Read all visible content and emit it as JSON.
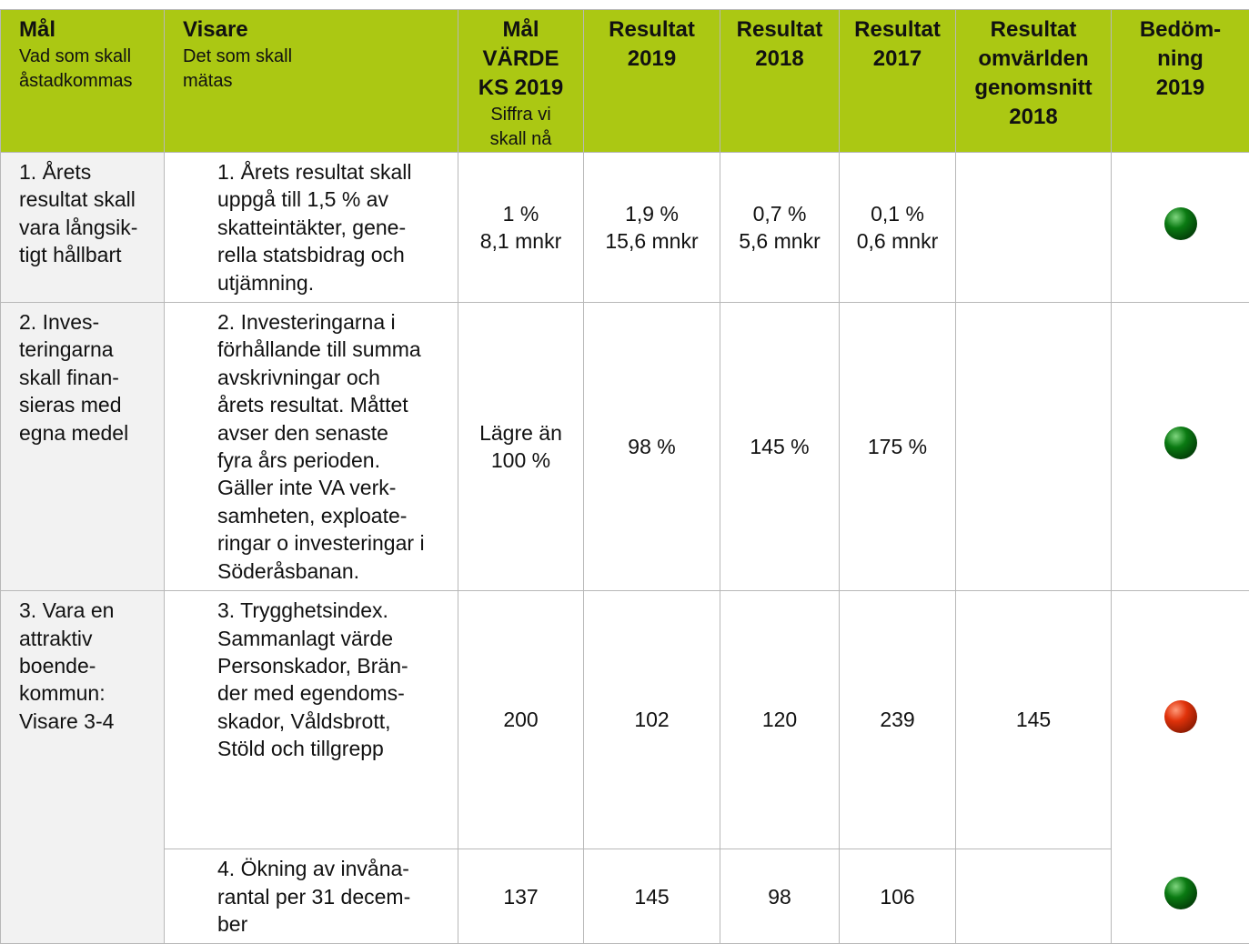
{
  "table": {
    "columns": [
      {
        "title": "Mål",
        "sub": "Vad som skall\nåstadkommas"
      },
      {
        "title": "Visare",
        "sub": "Det som skall\nmätas"
      },
      {
        "title": "Mål\nVÄRDE\nKS 2019",
        "sub": "Siffra vi\nskall nå"
      },
      {
        "title": "Resultat\n2019"
      },
      {
        "title": "Resultat\n2018"
      },
      {
        "title": "Resultat\n2017"
      },
      {
        "title": "Resultat\nomvärlden\ngenomsnitt\n2018"
      },
      {
        "title": "Bedöm-\nning\n2019"
      }
    ],
    "rows": [
      {
        "goal": "1. Årets\nresultat skall\nvara långsik-\ntigt hållbart",
        "indicators": [
          {
            "text": "1. Årets resultat skall\nuppgå till 1,5 % av\nskatteintäkter, gene-\nrella statsbidrag och\nutjämning.",
            "target": "1 %\n8,1 mnkr",
            "r2019": "1,9 %\n15,6 mnkr",
            "r2018": "0,7 %\n5,6 mnkr",
            "r2017": "0,1 %\n0,6 mnkr",
            "benchmark": null,
            "assessment": "green"
          }
        ]
      },
      {
        "goal": "2. Inves-\nteringarna\nskall finan-\nsieras med\negna medel",
        "indicators": [
          {
            "text": "2. Investeringarna i\nförhållande till summa\navskrivningar och\nårets resultat. Måttet\navser den senaste\nfyra års perioden.\nGäller inte VA verk-\nsamheten, exploate-\nringar o investeringar i\nSöderåsbanan.",
            "target": "Lägre än\n100 %",
            "r2019": "98 %",
            "r2018": "145 %",
            "r2017": "175 %",
            "benchmark": null,
            "assessment": "green"
          }
        ]
      },
      {
        "goal": "3. Vara en\nattraktiv\nboende-\nkommun:\nVisare 3-4",
        "indicators": [
          {
            "text": "3. Trygghetsindex.\nSammanlagt värde\nPersonskador, Brän-\nder med egendoms-\nskador, Våldsbrott,\nStöld och tillgrepp",
            "target": "200",
            "r2019": "102",
            "r2018": "120",
            "r2017": "239",
            "benchmark": "145",
            "assessment": "red"
          },
          {
            "text": "4. Ökning av invåna-\nrantal per 31 decem-\nber",
            "target": "137",
            "r2019": "145",
            "r2018": "98",
            "r2017": "106",
            "benchmark": null,
            "assessment": "green"
          }
        ]
      }
    ]
  }
}
